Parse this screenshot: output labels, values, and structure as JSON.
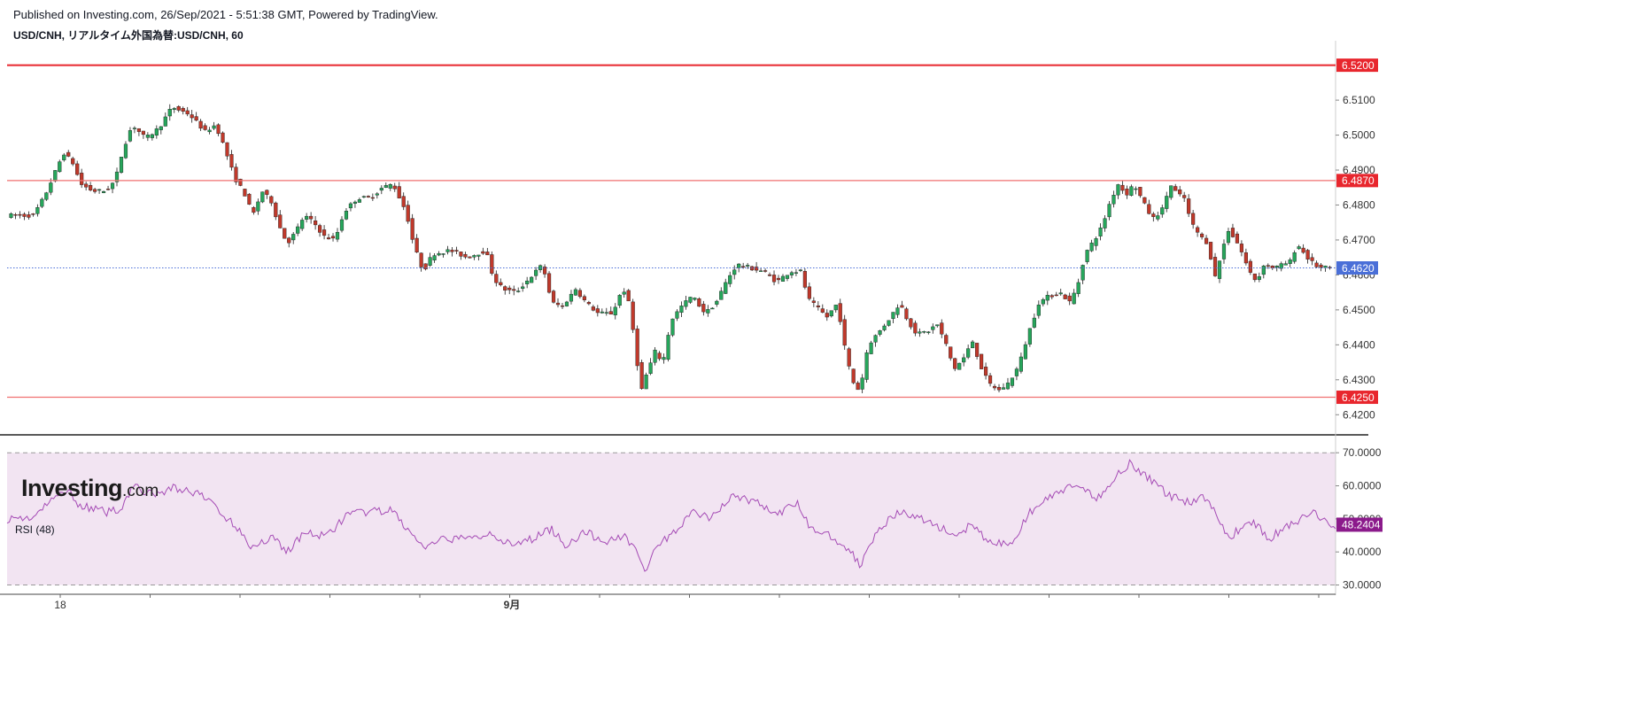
{
  "header": {
    "published": "Published on Investing.com, 26/Sep/2021 - 5:51:38 GMT, Powered by TradingView.",
    "symbol_line": "USD/CNH, リアルタイム外国為替:USD/CNH, 60"
  },
  "logo": {
    "main": "Investing",
    "suffix": ".com"
  },
  "colors": {
    "up": "#26a65b",
    "down": "#c0392b",
    "wick": "#1b1b1b",
    "resistance": "#e8262d",
    "level_line": "#f07070",
    "current_price": "#4a6fd8",
    "rsi_line": "#a54bb5",
    "rsi_fill": "#f2e4f2",
    "rsi_badge": "#8b1a8b"
  },
  "chart_data": [
    {
      "type": "candlestick",
      "timeframe": "60",
      "ylim": [
        6.415,
        6.527
      ],
      "y_ticks": [
        "6.5100",
        "6.5000",
        "6.4900",
        "6.4800",
        "6.4700",
        "6.4600",
        "6.4500",
        "6.4400",
        "6.4300",
        "6.4200"
      ],
      "y_tick_values": [
        6.51,
        6.5,
        6.49,
        6.48,
        6.47,
        6.46,
        6.45,
        6.44,
        6.43,
        6.42
      ],
      "x_labels": [
        {
          "label": "18",
          "pos": 0.04
        },
        {
          "label": "9月",
          "pos": 0.38
        }
      ],
      "horizontal_levels": [
        {
          "value": 6.52,
          "label": "6.5200",
          "kind": "resistance"
        },
        {
          "value": 6.487,
          "label": "6.4870",
          "kind": "level"
        },
        {
          "value": 6.425,
          "label": "6.4250",
          "kind": "level"
        }
      ],
      "current_price": {
        "value": 6.462,
        "label": "6.4620"
      },
      "path_knots": [
        [
          0.0,
          6.477
        ],
        [
          0.02,
          6.477
        ],
        [
          0.028,
          6.482
        ],
        [
          0.035,
          6.488
        ],
        [
          0.043,
          6.495
        ],
        [
          0.05,
          6.492
        ],
        [
          0.056,
          6.486
        ],
        [
          0.065,
          6.484
        ],
        [
          0.075,
          6.484
        ],
        [
          0.082,
          6.487
        ],
        [
          0.088,
          6.496
        ],
        [
          0.095,
          6.503
        ],
        [
          0.105,
          6.499
        ],
        [
          0.115,
          6.502
        ],
        [
          0.125,
          6.508
        ],
        [
          0.138,
          6.506
        ],
        [
          0.15,
          6.501
        ],
        [
          0.158,
          6.503
        ],
        [
          0.165,
          6.496
        ],
        [
          0.172,
          6.488
        ],
        [
          0.18,
          6.483
        ],
        [
          0.186,
          6.477
        ],
        [
          0.193,
          6.484
        ],
        [
          0.2,
          6.481
        ],
        [
          0.206,
          6.474
        ],
        [
          0.212,
          6.469
        ],
        [
          0.218,
          6.472
        ],
        [
          0.225,
          6.477
        ],
        [
          0.232,
          6.475
        ],
        [
          0.24,
          6.471
        ],
        [
          0.248,
          6.47
        ],
        [
          0.255,
          6.478
        ],
        [
          0.265,
          6.482
        ],
        [
          0.275,
          6.482
        ],
        [
          0.284,
          6.485
        ],
        [
          0.292,
          6.486
        ],
        [
          0.302,
          6.478
        ],
        [
          0.308,
          6.468
        ],
        [
          0.315,
          6.461
        ],
        [
          0.322,
          6.466
        ],
        [
          0.335,
          6.467
        ],
        [
          0.348,
          6.465
        ],
        [
          0.362,
          6.467
        ],
        [
          0.368,
          6.459
        ],
        [
          0.375,
          6.456
        ],
        [
          0.385,
          6.455
        ],
        [
          0.395,
          6.459
        ],
        [
          0.405,
          6.463
        ],
        [
          0.412,
          6.452
        ],
        [
          0.42,
          6.451
        ],
        [
          0.43,
          6.456
        ],
        [
          0.438,
          6.452
        ],
        [
          0.447,
          6.449
        ],
        [
          0.458,
          6.449
        ],
        [
          0.463,
          6.454
        ],
        [
          0.468,
          6.456
        ],
        [
          0.472,
          6.448
        ],
        [
          0.476,
          6.437
        ],
        [
          0.479,
          6.426
        ],
        [
          0.483,
          6.431
        ],
        [
          0.49,
          6.438
        ],
        [
          0.496,
          6.435
        ],
        [
          0.502,
          6.447
        ],
        [
          0.51,
          6.451
        ],
        [
          0.518,
          6.454
        ],
        [
          0.528,
          6.449
        ],
        [
          0.536,
          6.452
        ],
        [
          0.545,
          6.459
        ],
        [
          0.552,
          6.463
        ],
        [
          0.562,
          6.462
        ],
        [
          0.572,
          6.461
        ],
        [
          0.582,
          6.458
        ],
        [
          0.592,
          6.461
        ],
        [
          0.6,
          6.461
        ],
        [
          0.606,
          6.453
        ],
        [
          0.614,
          6.45
        ],
        [
          0.62,
          6.448
        ],
        [
          0.628,
          6.452
        ],
        [
          0.633,
          6.44
        ],
        [
          0.637,
          6.433
        ],
        [
          0.641,
          6.428
        ],
        [
          0.645,
          6.427
        ],
        [
          0.651,
          6.44
        ],
        [
          0.66,
          6.444
        ],
        [
          0.668,
          6.448
        ],
        [
          0.675,
          6.452
        ],
        [
          0.681,
          6.447
        ],
        [
          0.688,
          6.443
        ],
        [
          0.697,
          6.444
        ],
        [
          0.703,
          6.446
        ],
        [
          0.71,
          6.44
        ],
        [
          0.716,
          6.433
        ],
        [
          0.723,
          6.436
        ],
        [
          0.73,
          6.441
        ],
        [
          0.736,
          6.434
        ],
        [
          0.742,
          6.429
        ],
        [
          0.75,
          6.427
        ],
        [
          0.757,
          6.429
        ],
        [
          0.765,
          6.434
        ],
        [
          0.772,
          6.443
        ],
        [
          0.78,
          6.452
        ],
        [
          0.788,
          6.454
        ],
        [
          0.796,
          6.455
        ],
        [
          0.804,
          6.452
        ],
        [
          0.81,
          6.458
        ],
        [
          0.815,
          6.466
        ],
        [
          0.822,
          6.47
        ],
        [
          0.828,
          6.474
        ],
        [
          0.834,
          6.481
        ],
        [
          0.84,
          6.486
        ],
        [
          0.846,
          6.483
        ],
        [
          0.852,
          6.486
        ],
        [
          0.86,
          6.48
        ],
        [
          0.866,
          6.476
        ],
        [
          0.874,
          6.479
        ],
        [
          0.879,
          6.486
        ],
        [
          0.885,
          6.483
        ],
        [
          0.89,
          6.482
        ],
        [
          0.895,
          6.475
        ],
        [
          0.902,
          6.471
        ],
        [
          0.908,
          6.469
        ],
        [
          0.913,
          6.459
        ],
        [
          0.918,
          6.466
        ],
        [
          0.923,
          6.473
        ],
        [
          0.929,
          6.47
        ],
        [
          0.934,
          6.466
        ],
        [
          0.939,
          6.461
        ],
        [
          0.945,
          6.458
        ],
        [
          0.95,
          6.463
        ],
        [
          0.958,
          6.462
        ],
        [
          0.965,
          6.463
        ],
        [
          0.971,
          6.464
        ],
        [
          0.975,
          6.469
        ],
        [
          0.979,
          6.467
        ],
        [
          0.985,
          6.464
        ],
        [
          0.992,
          6.462
        ],
        [
          1.0,
          6.462
        ]
      ]
    },
    {
      "type": "line",
      "name": "RSI (48)",
      "ylim": [
        28,
        73
      ],
      "y_ticks": [
        "70.0000",
        "60.0000",
        "50.0000",
        "40.0000",
        "30.0000"
      ],
      "y_tick_values": [
        70,
        60,
        50,
        40,
        30
      ],
      "band": [
        30,
        70
      ],
      "current_value": {
        "value": 48.2404,
        "label": "48.2404"
      },
      "points": [
        [
          0.0,
          50
        ],
        [
          0.02,
          50.5
        ],
        [
          0.035,
          56
        ],
        [
          0.045,
          59
        ],
        [
          0.055,
          54
        ],
        [
          0.075,
          52
        ],
        [
          0.085,
          53
        ],
        [
          0.095,
          60
        ],
        [
          0.11,
          57
        ],
        [
          0.125,
          59.5
        ],
        [
          0.14,
          58
        ],
        [
          0.155,
          55
        ],
        [
          0.165,
          50
        ],
        [
          0.175,
          47
        ],
        [
          0.185,
          41
        ],
        [
          0.2,
          45
        ],
        [
          0.21,
          40
        ],
        [
          0.225,
          46
        ],
        [
          0.24,
          44.5
        ],
        [
          0.255,
          51
        ],
        [
          0.27,
          52
        ],
        [
          0.29,
          52.5
        ],
        [
          0.305,
          45
        ],
        [
          0.315,
          41
        ],
        [
          0.33,
          44
        ],
        [
          0.35,
          44
        ],
        [
          0.365,
          46
        ],
        [
          0.38,
          41.5
        ],
        [
          0.395,
          44
        ],
        [
          0.41,
          47
        ],
        [
          0.42,
          42
        ],
        [
          0.435,
          46
        ],
        [
          0.45,
          43
        ],
        [
          0.465,
          45
        ],
        [
          0.475,
          40
        ],
        [
          0.48,
          34
        ],
        [
          0.49,
          42
        ],
        [
          0.5,
          45
        ],
        [
          0.515,
          52
        ],
        [
          0.53,
          50
        ],
        [
          0.545,
          57
        ],
        [
          0.565,
          55
        ],
        [
          0.58,
          51
        ],
        [
          0.595,
          55
        ],
        [
          0.605,
          47
        ],
        [
          0.62,
          45
        ],
        [
          0.635,
          40
        ],
        [
          0.642,
          36
        ],
        [
          0.655,
          47
        ],
        [
          0.672,
          52
        ],
        [
          0.685,
          50.5
        ],
        [
          0.7,
          48
        ],
        [
          0.715,
          44.5
        ],
        [
          0.725,
          48
        ],
        [
          0.74,
          43
        ],
        [
          0.755,
          42
        ],
        [
          0.77,
          52
        ],
        [
          0.79,
          58
        ],
        [
          0.805,
          60
        ],
        [
          0.82,
          56
        ],
        [
          0.835,
          63
        ],
        [
          0.845,
          67
        ],
        [
          0.86,
          62
        ],
        [
          0.875,
          57
        ],
        [
          0.89,
          55
        ],
        [
          0.9,
          57
        ],
        [
          0.91,
          52
        ],
        [
          0.92,
          44
        ],
        [
          0.935,
          50
        ],
        [
          0.95,
          44
        ],
        [
          0.965,
          48
        ],
        [
          0.975,
          50
        ],
        [
          0.985,
          52
        ],
        [
          0.992,
          49
        ],
        [
          1.0,
          48.2
        ]
      ]
    }
  ]
}
